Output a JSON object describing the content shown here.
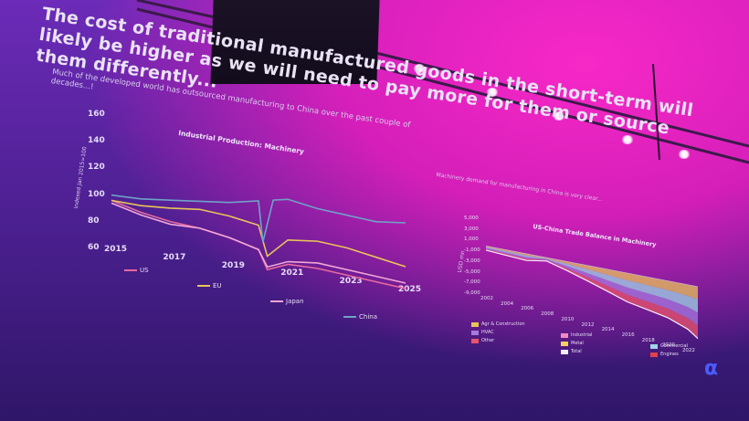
{
  "slide": {
    "title": "The cost of traditional manufactured goods in the short-term will likely be higher as we will need to pay more for them or source them differently...",
    "subtitle": "Much of the developed world has outsourced manufacturing to China over the past couple of decades...!",
    "right_subtitle": "Machinery demand for manufacturing in China is very clear..."
  },
  "left_chart": {
    "title": "Industrial Production: Machinery",
    "ylabel": "Indexed Jan 2015=100",
    "y_ticks": [
      "160",
      "140",
      "120",
      "100",
      "80",
      "60"
    ],
    "x_ticks": [
      "2015",
      "2017",
      "2019",
      "2021",
      "2023",
      "2025"
    ],
    "legend": [
      {
        "label": "US",
        "color": "#e86aa0"
      },
      {
        "label": "EU",
        "color": "#e9c35a"
      },
      {
        "label": "Japan",
        "color": "#f2a6d6"
      },
      {
        "label": "China",
        "color": "#6fa2c8"
      }
    ]
  },
  "right_chart": {
    "title": "US-China Trade Balance in Machinery",
    "ylabel": "USD mn",
    "y_ticks": [
      "5,000",
      "3,000",
      "1,000",
      "-1,000",
      "-3,000",
      "-5,000",
      "-7,000",
      "-9,000"
    ],
    "x_ticks": [
      "2002",
      "2004",
      "2006",
      "2008",
      "2010",
      "2012",
      "2014",
      "2016",
      "2018",
      "2020",
      "2022"
    ],
    "legend": [
      {
        "label": "Agr & Construction",
        "color": "#e9c35a"
      },
      {
        "label": "HVAC",
        "color": "#a779e0"
      },
      {
        "label": "Other",
        "color": "#e9546b"
      },
      {
        "label": "Industrial",
        "color": "#f08ac0"
      },
      {
        "label": "Metal",
        "color": "#f2d15a"
      },
      {
        "label": "Total",
        "color": "#f4f0fb"
      },
      {
        "label": "Commercial",
        "color": "#9fd6e8"
      },
      {
        "label": "Engines",
        "color": "#e0404f"
      }
    ]
  },
  "logo": {
    "glyph": "α",
    "color": "#4a5cff"
  },
  "chart_data": [
    {
      "type": "line",
      "title": "Industrial Production: Machinery",
      "ylabel": "Indexed Jan 2015=100",
      "xlabel": "",
      "xlim": [
        2015,
        2025
      ],
      "ylim": [
        60,
        160
      ],
      "series": [
        {
          "name": "US",
          "x": [
            2015,
            2016,
            2017,
            2018,
            2019,
            2020,
            2020.3,
            2021,
            2022,
            2023,
            2024,
            2025
          ],
          "y": [
            96,
            90,
            86,
            84,
            80,
            74,
            60,
            66,
            66,
            64,
            62,
            60
          ]
        },
        {
          "name": "EU",
          "x": [
            2015,
            2016,
            2017,
            2018,
            2019,
            2020,
            2020.3,
            2021,
            2022,
            2023,
            2024,
            2025
          ],
          "y": [
            96,
            95,
            96,
            98,
            96,
            92,
            70,
            84,
            86,
            84,
            80,
            76
          ]
        },
        {
          "name": "Japan",
          "x": [
            2015,
            2016,
            2017,
            2018,
            2019,
            2020,
            2020.3,
            2021,
            2022,
            2023,
            2024,
            2025
          ],
          "y": [
            94,
            88,
            84,
            84,
            80,
            74,
            62,
            68,
            70,
            68,
            66,
            64
          ]
        },
        {
          "name": "China",
          "x": [
            2015,
            2016,
            2017,
            2018,
            2019,
            2020,
            2020.15,
            2020.5,
            2021,
            2022,
            2023,
            2024,
            2025
          ],
          "y": [
            100,
            100,
            102,
            104,
            106,
            110,
            80,
            112,
            114,
            110,
            108,
            106,
            108
          ]
        }
      ]
    },
    {
      "type": "area",
      "title": "US-China Trade Balance in Machinery",
      "ylabel": "USD mn",
      "xlim": [
        2002,
        2023
      ],
      "ylim": [
        -9000,
        5000
      ],
      "series": [
        {
          "name": "Total",
          "x": [
            2002,
            2004,
            2006,
            2008,
            2010,
            2012,
            2014,
            2016,
            2018,
            2020,
            2022,
            2023
          ],
          "y": [
            -800,
            -1000,
            -1200,
            -600,
            -1500,
            -2500,
            -3500,
            -4500,
            -5000,
            -5500,
            -6500,
            -7500
          ]
        }
      ]
    }
  ]
}
